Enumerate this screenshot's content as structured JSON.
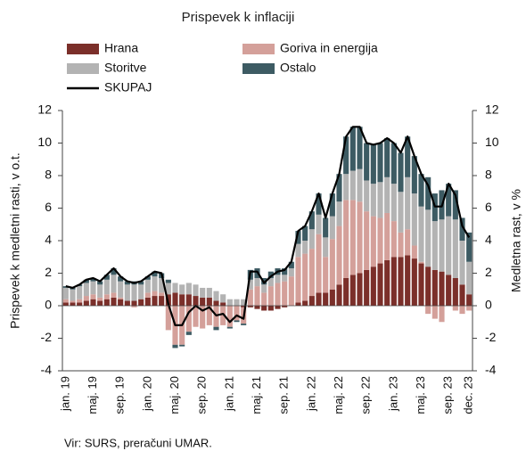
{
  "chart_data": {
    "type": "stacked-bar-line",
    "title": "Prispevek k inflaciji",
    "y_label": "Prispevek k medletni rasti, v o.t.",
    "y2_label": "Medletna rast, v %",
    "source": "Vir: SURS, preračuni UMAR.",
    "categories": [
      "jan. 19",
      null,
      null,
      null,
      "maj. 19",
      null,
      null,
      null,
      "sep. 19",
      null,
      null,
      null,
      "jan. 20",
      null,
      null,
      null,
      "maj. 20",
      null,
      null,
      null,
      "sep. 20",
      null,
      null,
      null,
      "jan. 21",
      null,
      null,
      null,
      "maj. 21",
      null,
      null,
      null,
      "sep. 21",
      null,
      null,
      null,
      "jan. 22",
      null,
      null,
      null,
      "maj. 22",
      null,
      null,
      null,
      "sep. 22",
      null,
      null,
      null,
      "jan. 23",
      null,
      null,
      null,
      "maj. 23",
      null,
      null,
      null,
      "sep. 23",
      null,
      null,
      "dec. 23"
    ],
    "series": [
      {
        "name": "Hrana",
        "color": "#7b2f2a",
        "values": [
          0.2,
          0.2,
          0.2,
          0.3,
          0.4,
          0.3,
          0.4,
          0.5,
          0.4,
          0.3,
          0.3,
          0.4,
          0.5,
          0.6,
          0.6,
          0.7,
          0.8,
          0.7,
          0.7,
          0.6,
          0.5,
          0.5,
          0.3,
          0.2,
          0.0,
          0.0,
          -0.1,
          -0.1,
          -0.2,
          -0.3,
          -0.3,
          -0.2,
          -0.1,
          0.0,
          0.2,
          0.3,
          0.6,
          0.8,
          0.8,
          1.0,
          1.3,
          1.7,
          1.9,
          2.0,
          2.2,
          2.4,
          2.6,
          2.8,
          3.0,
          3.0,
          3.1,
          2.9,
          2.6,
          2.4,
          2.2,
          2.1,
          1.9,
          1.7,
          1.3,
          0.7
        ]
      },
      {
        "name": "Goriva in energija",
        "color": "#d4a09a",
        "values": [
          0.2,
          0.1,
          0.2,
          0.3,
          0.3,
          0.2,
          0.3,
          0.3,
          0.1,
          0.0,
          -0.1,
          0.0,
          0.3,
          0.3,
          0.2,
          -1.5,
          -2.4,
          -2.4,
          -1.6,
          -1.3,
          -1.4,
          -1.2,
          -1.3,
          -1.2,
          -1.3,
          -0.9,
          -1.0,
          1.0,
          1.2,
          0.8,
          1.2,
          1.4,
          1.5,
          1.8,
          2.8,
          2.9,
          2.9,
          3.6,
          2.2,
          3.1,
          3.6,
          4.8,
          4.6,
          4.4,
          3.6,
          3.1,
          2.8,
          2.9,
          2.2,
          1.5,
          1.6,
          0.8,
          0.1,
          -0.5,
          -0.8,
          -1.0,
          0.0,
          -0.3,
          -0.5,
          -0.3
        ]
      },
      {
        "name": "Storitve",
        "color": "#b3b3b3",
        "values": [
          0.7,
          0.7,
          0.8,
          0.8,
          0.8,
          0.8,
          0.9,
          1.1,
          1.0,
          1.0,
          1.0,
          0.9,
          0.8,
          0.9,
          0.9,
          0.7,
          0.6,
          0.6,
          0.7,
          0.7,
          0.6,
          0.6,
          0.6,
          0.5,
          0.4,
          0.4,
          0.4,
          0.6,
          0.5,
          0.5,
          0.5,
          0.5,
          0.4,
          0.5,
          0.8,
          0.8,
          1.2,
          1.2,
          1.2,
          1.4,
          1.5,
          1.6,
          1.8,
          2.0,
          1.9,
          2.0,
          2.2,
          2.2,
          2.3,
          2.5,
          3.2,
          3.2,
          3.4,
          3.5,
          3.0,
          3.2,
          3.6,
          3.6,
          2.7,
          2.0
        ]
      },
      {
        "name": "Ostalo",
        "color": "#3d5b63",
        "values": [
          0.1,
          0.1,
          0.1,
          0.2,
          0.2,
          0.2,
          0.3,
          0.4,
          0.3,
          0.2,
          0.2,
          0.2,
          0.2,
          0.3,
          0.3,
          0.2,
          -0.2,
          -0.1,
          -0.2,
          0.0,
          0.0,
          0.0,
          -0.2,
          0.0,
          -0.1,
          -0.1,
          -0.1,
          0.6,
          0.6,
          0.4,
          0.4,
          0.4,
          0.4,
          0.4,
          0.8,
          0.9,
          1.1,
          1.3,
          1.2,
          1.4,
          1.7,
          2.3,
          2.7,
          2.6,
          2.3,
          2.4,
          2.4,
          2.4,
          2.5,
          2.4,
          2.5,
          2.3,
          2.0,
          2.0,
          1.7,
          1.8,
          2.0,
          1.8,
          1.4,
          1.8
        ]
      },
      {
        "name": "SKUPAJ",
        "color": "#000000",
        "axis": "y2",
        "values": [
          1.2,
          1.1,
          1.3,
          1.6,
          1.7,
          1.5,
          1.9,
          2.3,
          1.8,
          1.5,
          1.4,
          1.5,
          1.8,
          2.1,
          2.0,
          0.1,
          -1.2,
          -1.2,
          -0.4,
          0.0,
          -0.3,
          -0.1,
          -0.6,
          -0.5,
          -1.0,
          -0.6,
          -0.8,
          2.1,
          2.1,
          1.4,
          1.8,
          2.1,
          2.2,
          2.7,
          4.6,
          4.9,
          5.8,
          6.9,
          5.4,
          6.9,
          8.1,
          10.4,
          11.0,
          11.0,
          10.0,
          9.9,
          10.0,
          10.3,
          10.0,
          9.4,
          10.4,
          9.2,
          8.1,
          7.4,
          6.1,
          6.1,
          7.5,
          6.8,
          4.9,
          4.2
        ]
      }
    ],
    "ylim": [
      -4,
      12
    ],
    "yticks": [
      -4,
      -2,
      0,
      2,
      4,
      6,
      8,
      10,
      12
    ],
    "y2lim": [
      -4,
      12
    ],
    "y2ticks": [
      -4,
      -2,
      0,
      2,
      4,
      6,
      8,
      10,
      12
    ]
  }
}
